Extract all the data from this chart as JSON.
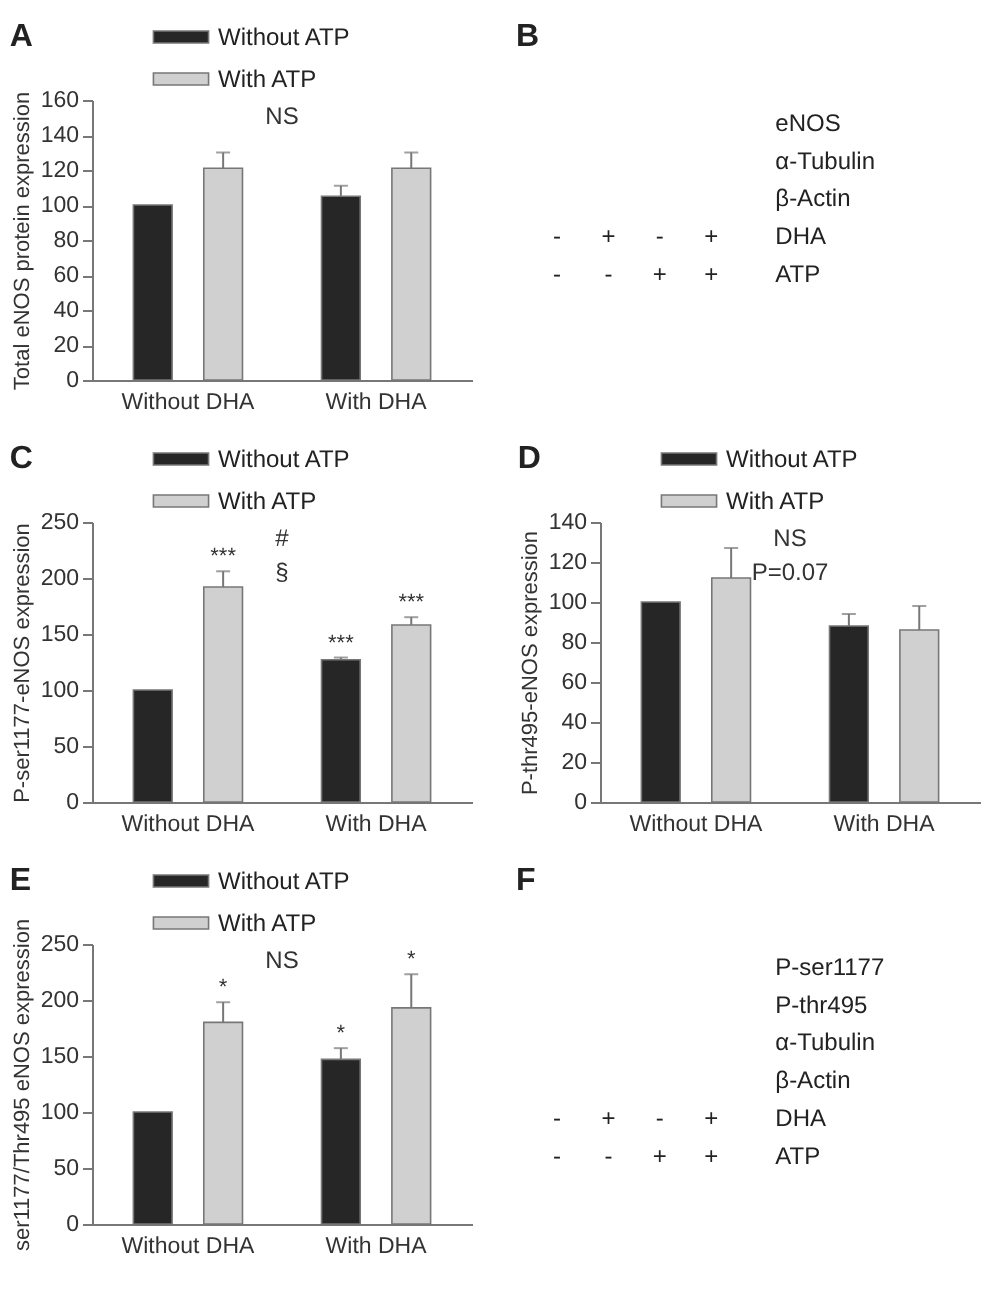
{
  "chart_data": [
    {
      "type": "bar",
      "title": "A",
      "ylabel": "Total eNOS protein expression",
      "categories": [
        "Without DHA",
        "With DHA"
      ],
      "series": [
        {
          "name": "Without ATP",
          "color": "#262626",
          "values": [
            100,
            105
          ],
          "errors": [
            null,
            [
              105,
              111
            ]
          ]
        },
        {
          "name": "With ATP",
          "color": "#d0d0d0",
          "values": [
            121,
            121
          ],
          "errors": [
            [
              121,
              130
            ],
            [
              121,
              130
            ]
          ]
        }
      ],
      "ylim": [
        0,
        160
      ],
      "yticks": [
        0,
        20,
        40,
        60,
        80,
        100,
        120,
        140,
        160
      ],
      "legend": "top left",
      "annotations": [
        "NS"
      ]
    },
    {
      "type": "other",
      "title": "B",
      "y_categories": [
        "eNOS",
        "α-Tubulin",
        "β-Actin",
        "DHA",
        "ATP"
      ],
      "cell_labels": [
        [
          null,
          null,
          null,
          null
        ],
        [
          null,
          null,
          null,
          null
        ],
        [
          null,
          null,
          null,
          null
        ],
        [
          "-",
          "+",
          "-",
          "+"
        ],
        [
          "-",
          "-",
          "+",
          "+"
        ]
      ]
    },
    {
      "type": "bar",
      "title": "C",
      "ylabel": "P-ser1177-eNOS expression",
      "categories": [
        "Without DHA",
        "With DHA"
      ],
      "series": [
        {
          "name": "Without ATP",
          "color": "#262626",
          "values": [
            100,
            127
          ],
          "errors": [
            null,
            [
              127,
              129
            ]
          ],
          "value_labels": [
            null,
            "***"
          ]
        },
        {
          "name": "With ATP",
          "color": "#d0d0d0",
          "values": [
            192,
            158
          ],
          "errors": [
            [
              192,
              206
            ],
            [
              158,
              165
            ]
          ],
          "value_labels": [
            "***",
            "***"
          ]
        }
      ],
      "ylim": [
        0,
        250
      ],
      "yticks": [
        0,
        50,
        100,
        150,
        200,
        250
      ],
      "legend": "top left",
      "annotations": [
        "#",
        "§"
      ]
    },
    {
      "type": "bar",
      "title": "D",
      "ylabel": "P-thr495-eNOS expression",
      "categories": [
        "Without DHA",
        "With DHA"
      ],
      "series": [
        {
          "name": "Without ATP",
          "color": "#262626",
          "values": [
            100,
            88
          ],
          "errors": [
            null,
            [
              88,
              94
            ]
          ]
        },
        {
          "name": "With ATP",
          "color": "#d0d0d0",
          "values": [
            112,
            86
          ],
          "errors": [
            [
              112,
              127
            ],
            [
              86,
              98
            ]
          ]
        }
      ],
      "ylim": [
        0,
        140
      ],
      "yticks": [
        0,
        20,
        40,
        60,
        80,
        100,
        120,
        140
      ],
      "legend": "top left",
      "annotations": [
        "NS",
        "P=0.07"
      ]
    },
    {
      "type": "bar",
      "title": "E",
      "ylabel": "ser1177/Thr495 eNOS expression",
      "categories": [
        "Without DHA",
        "With DHA"
      ],
      "series": [
        {
          "name": "Without ATP",
          "color": "#262626",
          "values": [
            100,
            147
          ],
          "errors": [
            null,
            [
              147,
              157
            ]
          ],
          "value_labels": [
            null,
            "*"
          ]
        },
        {
          "name": "With ATP",
          "color": "#d0d0d0",
          "values": [
            180,
            193
          ],
          "errors": [
            [
              180,
              198
            ],
            [
              193,
              223
            ]
          ],
          "value_labels": [
            "*",
            "*"
          ]
        }
      ],
      "ylim": [
        0,
        250
      ],
      "yticks": [
        0,
        50,
        100,
        150,
        200,
        250
      ],
      "legend": "top left",
      "annotations": [
        "NS"
      ]
    },
    {
      "type": "other",
      "title": "F",
      "y_categories": [
        "P-ser1177",
        "P-thr495",
        "α-Tubulin",
        "β-Actin",
        "DHA",
        "ATP"
      ],
      "cell_labels": [
        [
          null,
          null,
          null,
          null
        ],
        [
          null,
          null,
          null,
          null
        ],
        [
          null,
          null,
          null,
          null
        ],
        [
          null,
          null,
          null,
          null
        ],
        [
          "-",
          "+",
          "-",
          "+"
        ],
        [
          "-",
          "-",
          "+",
          "+"
        ]
      ]
    }
  ]
}
